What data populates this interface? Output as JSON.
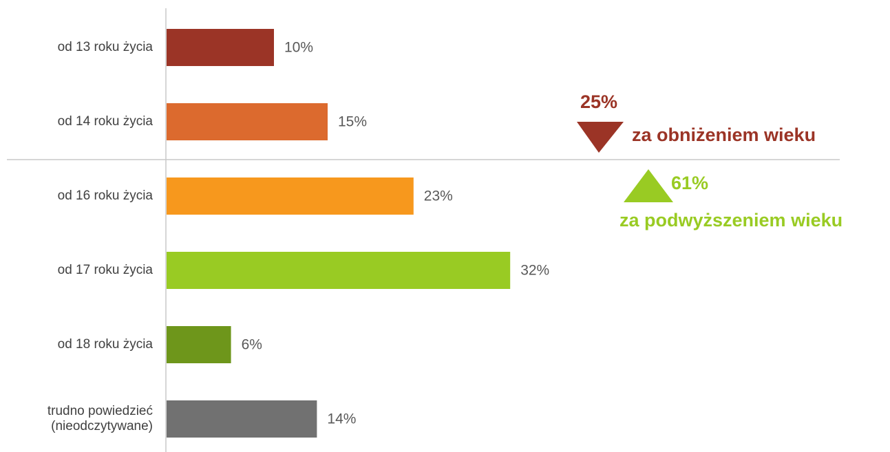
{
  "chart_data": {
    "type": "bar",
    "orientation": "horizontal",
    "categories": [
      "od 13 roku życia",
      "od 14 roku życia",
      "od 16 roku życia",
      "od 17 roku życia",
      "od 18 roku życia",
      "trudno powiedzieć\n(nieodczytywane)"
    ],
    "values": [
      10,
      15,
      23,
      32,
      6,
      14
    ],
    "value_labels": [
      "10%",
      "15%",
      "23%",
      "32%",
      "6%",
      "14%"
    ],
    "colors": [
      "#9b3426",
      "#dc6a2e",
      "#f7981d",
      "#99cb23",
      "#6e961b",
      "#717171"
    ],
    "xlim": [
      0,
      60
    ],
    "annotations": [
      {
        "value": 25,
        "label": "25%",
        "text": "za obniżeniem wieku",
        "color": "#9b3426",
        "direction": "down"
      },
      {
        "value": 61,
        "label": "61%",
        "text": "za podwyższeniem wieku",
        "color": "#99cb23",
        "direction": "up"
      }
    ]
  }
}
